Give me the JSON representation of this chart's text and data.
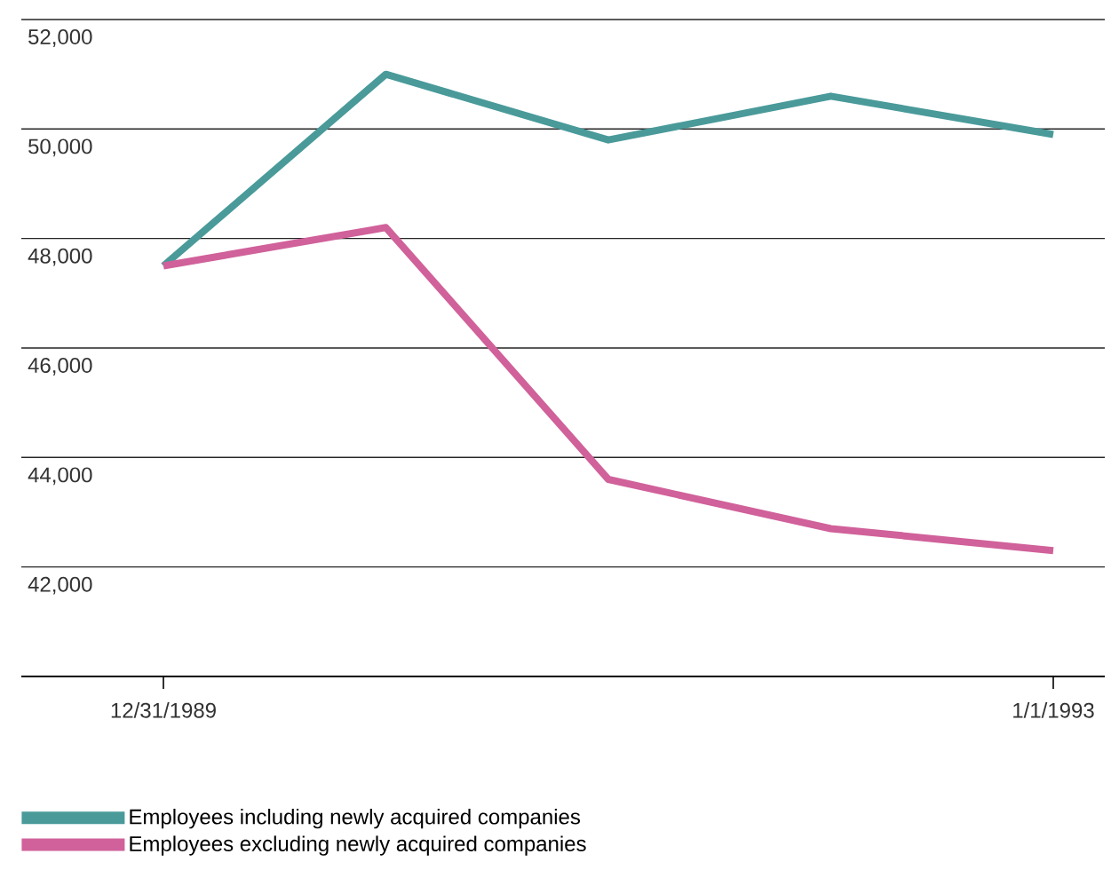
{
  "chart_data": {
    "type": "line",
    "categories": [
      "12/31/1989",
      null,
      null,
      null,
      "1/1/1993"
    ],
    "series": [
      {
        "name": "Employees including newly acquired companies",
        "color": "#4a9a9a",
        "values": [
          47500,
          51000,
          49800,
          50600,
          49900
        ]
      },
      {
        "name": "Employees excluding newly acquired companies",
        "color": "#d0619a",
        "values": [
          47500,
          48200,
          43600,
          42700,
          42300
        ]
      }
    ],
    "ylim": [
      40000,
      52000
    ],
    "yticks": [
      {
        "value": 42000,
        "label": "42,000"
      },
      {
        "value": 44000,
        "label": "44,000"
      },
      {
        "value": 46000,
        "label": "46,000"
      },
      {
        "value": 48000,
        "label": "48,000"
      },
      {
        "value": 50000,
        "label": "50,000"
      },
      {
        "value": 52000,
        "label": "52,000"
      }
    ],
    "grid": "y",
    "legend": "bottom",
    "marker": "none",
    "line_style": "solid"
  }
}
